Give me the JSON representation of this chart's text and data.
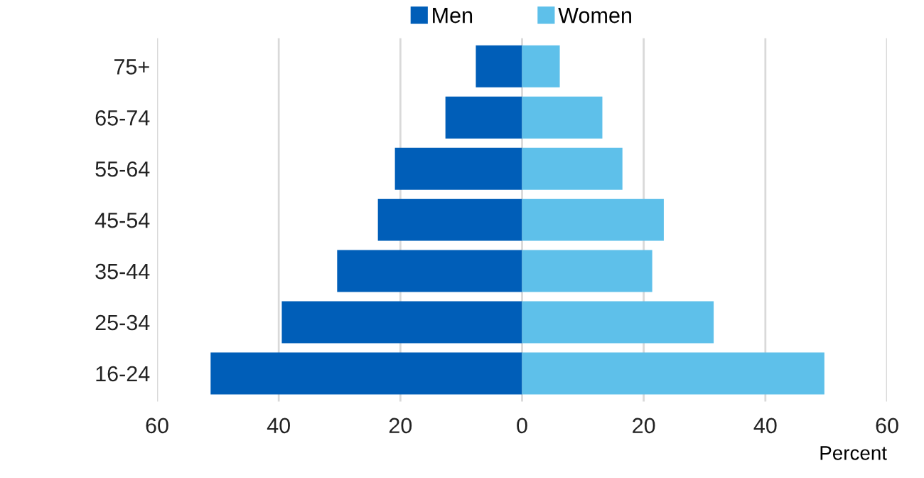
{
  "chart_data": {
    "type": "bar",
    "orientation": "horizontal",
    "stacked": true,
    "categories": [
      "75+",
      "65-74",
      "55-64",
      "45-54",
      "35-44",
      "25-34",
      "16-24"
    ],
    "series": [
      {
        "name": "Men",
        "color": "#005eb8",
        "values": [
          -7.6,
          -12.6,
          -20.9,
          -23.7,
          -30.4,
          -39.5,
          -51.2
        ]
      },
      {
        "name": "Women",
        "color": "#5ec0ea",
        "values": [
          6.2,
          13.2,
          16.5,
          23.3,
          21.4,
          31.5,
          49.7
        ]
      }
    ],
    "xlabel": "Percent",
    "xlim": [
      -60,
      60
    ],
    "xticks": [
      {
        "value": -60,
        "label": "60"
      },
      {
        "value": -40,
        "label": "40"
      },
      {
        "value": -20,
        "label": "20"
      },
      0,
      20,
      40,
      60
    ],
    "grid": "x",
    "legend": "top"
  }
}
